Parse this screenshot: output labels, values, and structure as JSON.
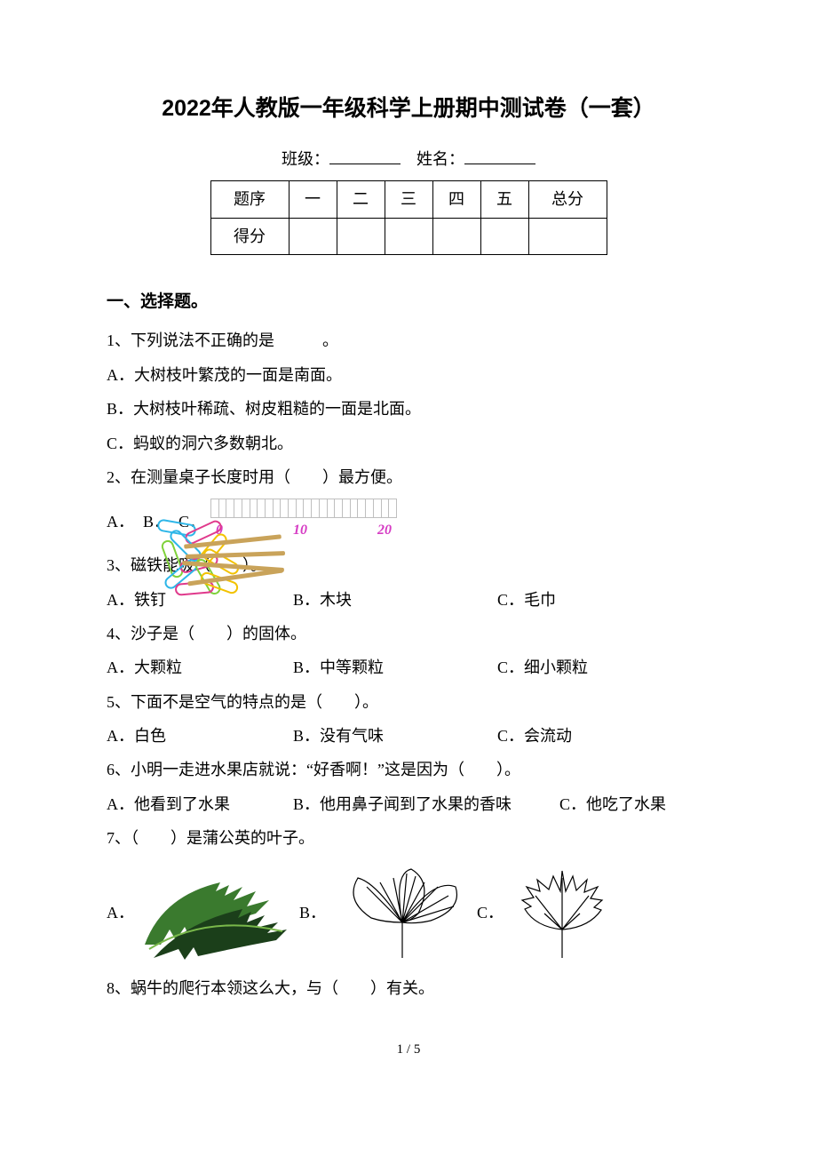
{
  "title": "2022年人教版一年级科学上册期中测试卷（一套）",
  "info": {
    "class_label": "班级：",
    "name_label": "姓名："
  },
  "score": {
    "row1_label": "题序",
    "cols": [
      "一",
      "二",
      "三",
      "四",
      "五"
    ],
    "total_label": "总分",
    "row2_label": "得分"
  },
  "section1_heading": "一、选择题。",
  "q1": {
    "stem": "1、下列说法不正确的是　　　。",
    "a": "A．大树枝叶繁茂的一面是南面。",
    "b": "B．大树枝叶稀疏、树皮粗糙的一面是北面。",
    "c": "C．蚂蚁的洞穴多数朝北。"
  },
  "q2": {
    "stem": "2、在测量桌子长度时用（　　）最方便。",
    "a_label": "A．",
    "b_label": "B．",
    "c_label": "C．",
    "ruler": {
      "ticks": 24,
      "labels": [
        "0",
        "10",
        "20"
      ],
      "label_color": "#d63cc4",
      "border_color": "#bfbfbf"
    },
    "clips_colors": [
      "#2db6e8",
      "#e03a8c",
      "#2db6e8",
      "#f2c200",
      "#7fd13b",
      "#e03a8c",
      "#f2c200",
      "#2db6e8",
      "#7fd13b",
      "#e03a8c",
      "#f2c200"
    ],
    "sticks_bg": "#5a5045",
    "stick_color": "#c9a35a"
  },
  "q3": {
    "stem": "3、磁铁能吸（　　）。",
    "a": "A．铁钉",
    "b": "B．木块",
    "c": "C．毛巾"
  },
  "q4": {
    "stem": "4、沙子是（　　）的固体。",
    "a": "A．大颗粒",
    "b": "B．中等颗粒",
    "c": "C．细小颗粒"
  },
  "q5": {
    "stem": "5、下面不是空气的特点的是（　　）。",
    "a": "A．白色",
    "b": "B．没有气味",
    "c": "C．会流动"
  },
  "q6": {
    "stem": "6、小明一走进水果店就说：“好香啊！”这是因为（　　）。",
    "a": "A．他看到了水果",
    "b": "B．他用鼻子闻到了水果的香味",
    "c": "C．他吃了水果"
  },
  "q7": {
    "stem": "7、（　　）是蒲公英的叶子。",
    "a_label": "A．",
    "b_label": "B．",
    "c_label": "C．",
    "leaf_a_colors": {
      "dark": "#1b3f1a",
      "mid": "#3a7a2e",
      "light": "#79b84a"
    },
    "leaf_b_color": "#000000",
    "leaf_c_color": "#000000"
  },
  "q8": {
    "stem": "8、蜗牛的爬行本领这么大，与（　　）有关。"
  },
  "page_num": "1 / 5"
}
